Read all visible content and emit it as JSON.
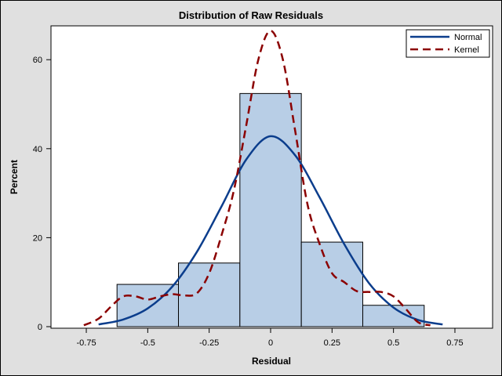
{
  "chart_data": {
    "type": "bar",
    "title": "Distribution of Raw Residuals",
    "xlabel": "Residual",
    "ylabel": "Percent",
    "xlim": [
      -0.92,
      0.88
    ],
    "ylim": [
      0,
      67
    ],
    "x_ticks": [
      -0.75,
      -0.5,
      -0.25,
      0,
      0.25,
      0.5,
      0.75
    ],
    "x_tick_labels": [
      "-0.75",
      "-0.5",
      "-0.25",
      "0",
      "0.25",
      "0.5",
      "0.75"
    ],
    "y_ticks": [
      0,
      20,
      40,
      60
    ],
    "y_tick_labels": [
      "0",
      "20",
      "40",
      "60"
    ],
    "grid": false,
    "legend_position": "top-right inside",
    "bin_width": 0.25,
    "categories": [
      -0.5,
      -0.25,
      0,
      0.25,
      0.5
    ],
    "values": [
      9.5,
      14.3,
      52.4,
      19.0,
      4.8
    ],
    "series": [
      {
        "name": "Normal",
        "type": "line",
        "style": "solid",
        "color": "#0b3d8c",
        "x": [
          -0.7,
          -0.6,
          -0.5,
          -0.4,
          -0.3,
          -0.2,
          -0.1,
          0,
          0.1,
          0.2,
          0.3,
          0.4,
          0.5,
          0.6,
          0.7
        ],
        "y": [
          0.5,
          1.6,
          4.1,
          9.0,
          16.8,
          27.0,
          37.5,
          42.8,
          38.5,
          29.0,
          18.5,
          9.8,
          4.3,
          1.5,
          0.5
        ]
      },
      {
        "name": "Kernel",
        "type": "line",
        "style": "dashed",
        "color": "#8b0000",
        "x": [
          -0.76,
          -0.7,
          -0.65,
          -0.6,
          -0.55,
          -0.5,
          -0.45,
          -0.4,
          -0.35,
          -0.3,
          -0.25,
          -0.2,
          -0.15,
          -0.1,
          -0.05,
          0,
          0.05,
          0.1,
          0.15,
          0.2,
          0.25,
          0.3,
          0.35,
          0.4,
          0.45,
          0.5,
          0.55,
          0.6,
          0.65
        ],
        "y": [
          0.3,
          1.8,
          4.5,
          6.8,
          6.8,
          6.1,
          6.8,
          7.3,
          7.0,
          7.5,
          12.0,
          20.5,
          30.5,
          45.0,
          60.0,
          66.5,
          60.0,
          44.0,
          27.5,
          18.5,
          12.0,
          10.0,
          8.0,
          7.8,
          7.8,
          6.8,
          4.0,
          1.0,
          0.3
        ]
      }
    ],
    "legend": [
      "Normal",
      "Kernel"
    ]
  },
  "colors": {
    "bar_fill": "#b8cee6",
    "bar_stroke": "#000000",
    "normal": "#0b3d8c",
    "kernel": "#8b0000",
    "background": "#e0e0e0",
    "plot_bg": "#ffffff"
  }
}
